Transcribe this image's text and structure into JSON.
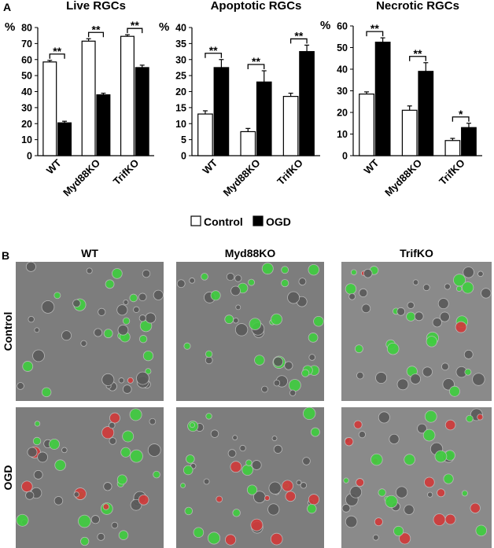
{
  "panel_a_label": "A",
  "chart_data": [
    {
      "type": "bar",
      "title": "Live RGCs",
      "ylabel": "%",
      "categories": [
        "WT",
        "Myd88KO",
        "TrifKO"
      ],
      "series": [
        {
          "name": "Control",
          "color": "#ffffff",
          "values": [
            58.5,
            71.5,
            74.5
          ],
          "errors": [
            1,
            1.5,
            1
          ]
        },
        {
          "name": "OGD",
          "color": "#000000",
          "values": [
            20.5,
            38,
            55
          ],
          "errors": [
            1,
            1,
            1.5
          ]
        }
      ],
      "significance": [
        "**",
        "**",
        "**"
      ],
      "ylim": [
        0,
        80
      ],
      "yticks": [
        0,
        10,
        20,
        30,
        40,
        50,
        60,
        70,
        80
      ]
    },
    {
      "type": "bar",
      "title": "Apoptotic RGCs",
      "ylabel": "%",
      "categories": [
        "WT",
        "Myd88KO",
        "TrifKO"
      ],
      "series": [
        {
          "color": "#ffffff",
          "values": [
            13,
            7.5,
            18.5
          ],
          "errors": [
            1,
            1,
            1
          ]
        },
        {
          "color": "#000000",
          "values": [
            27.5,
            23,
            32.5
          ],
          "errors": [
            2.5,
            3.5,
            2
          ]
        }
      ],
      "significance": [
        "**",
        "**",
        "**"
      ],
      "ylim": [
        0,
        40
      ],
      "yticks": [
        0,
        5,
        10,
        15,
        20,
        25,
        30,
        35,
        40
      ]
    },
    {
      "type": "bar",
      "title": "Necrotic RGCs",
      "ylabel": "%",
      "categories": [
        "WT",
        "Myd88KO",
        "TrifKO"
      ],
      "series": [
        {
          "color": "#ffffff",
          "values": [
            28.5,
            21,
            7
          ],
          "errors": [
            1,
            2,
            1
          ]
        },
        {
          "color": "#000000",
          "values": [
            52.5,
            39,
            13
          ],
          "errors": [
            2,
            4,
            2
          ]
        }
      ],
      "significance": [
        "**",
        "**",
        "*"
      ],
      "ylim": [
        0,
        60
      ],
      "yticks": [
        0,
        10,
        20,
        30,
        40,
        50,
        60
      ]
    }
  ],
  "panel_b": {
    "label": "B",
    "columns": [
      "WT",
      "Myd88KO",
      "TrifKO"
    ],
    "rows": [
      "Control",
      "OGD"
    ]
  }
}
